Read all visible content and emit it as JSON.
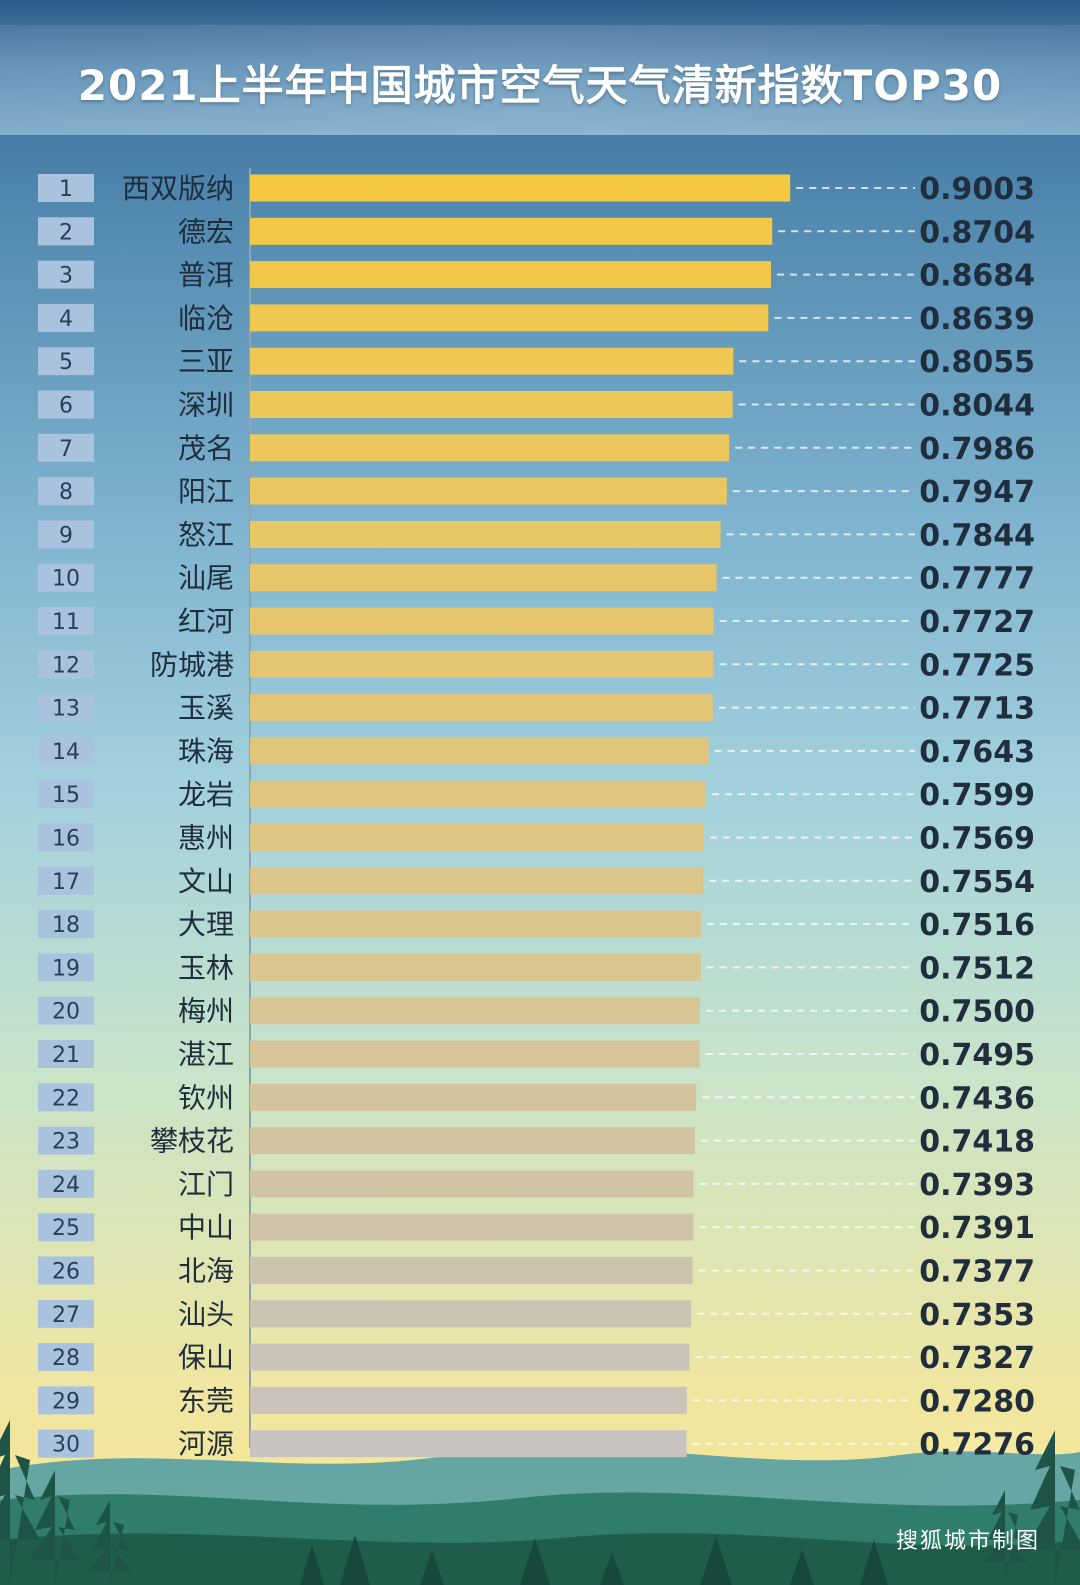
{
  "title": "2021上半年中国城市空气天气清新指数TOP30",
  "credit": "搜狐城市制图",
  "colors": {
    "bar_top": "#f5c842",
    "bar_bottom": "#c7c3c0",
    "rank_box": "#a9c3de",
    "title_text": "#ffffff"
  },
  "chart_data": {
    "type": "bar",
    "orientation": "horizontal",
    "title": "2021上半年中国城市空气天气清新指数TOP30",
    "xlim": [
      0,
      1
    ],
    "grid": false,
    "ranks": [
      "1",
      "2",
      "3",
      "4",
      "5",
      "6",
      "7",
      "8",
      "9",
      "10",
      "11",
      "12",
      "13",
      "14",
      "15",
      "16",
      "17",
      "18",
      "19",
      "20",
      "21",
      "22",
      "23",
      "24",
      "25",
      "26",
      "27",
      "28",
      "29",
      "30"
    ],
    "categories": [
      "西双版纳",
      "德宏",
      "普洱",
      "临沧",
      "三亚",
      "深圳",
      "茂名",
      "阳江",
      "怒江",
      "汕尾",
      "红河",
      "防城港",
      "玉溪",
      "珠海",
      "龙岩",
      "惠州",
      "文山",
      "大理",
      "玉林",
      "梅州",
      "湛江",
      "钦州",
      "攀枝花",
      "江门",
      "中山",
      "北海",
      "汕头",
      "保山",
      "东莞",
      "河源"
    ],
    "values": [
      0.9003,
      0.8704,
      0.8684,
      0.8639,
      0.8055,
      0.8044,
      0.7986,
      0.7947,
      0.7844,
      0.7777,
      0.7727,
      0.7725,
      0.7713,
      0.7643,
      0.7599,
      0.7569,
      0.7554,
      0.7516,
      0.7512,
      0.75,
      0.7495,
      0.7436,
      0.7418,
      0.7393,
      0.7391,
      0.7377,
      0.7353,
      0.7327,
      0.728,
      0.7276
    ],
    "value_labels": [
      "0.9003",
      "0.8704",
      "0.8684",
      "0.8639",
      "0.8055",
      "0.8044",
      "0.7986",
      "0.7947",
      "0.7844",
      "0.7777",
      "0.7727",
      "0.7725",
      "0.7713",
      "0.7643",
      "0.7599",
      "0.7569",
      "0.7554",
      "0.7516",
      "0.7512",
      "0.7500",
      "0.7495",
      "0.7436",
      "0.7418",
      "0.7393",
      "0.7391",
      "0.7377",
      "0.7353",
      "0.7327",
      "0.7280",
      "0.7276"
    ]
  }
}
